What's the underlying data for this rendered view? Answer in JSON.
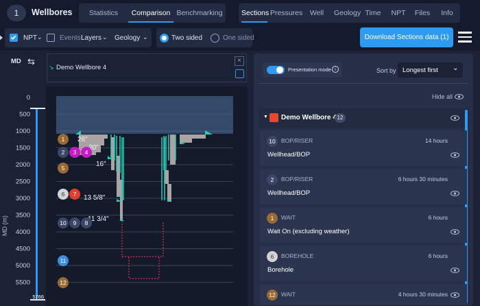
{
  "header": {
    "count": "1",
    "title": "Wellbores",
    "view_tabs": [
      {
        "label": "Statistics"
      },
      {
        "label": "Comparison"
      },
      {
        "label": "Benchmarking"
      }
    ],
    "section_tabs": [
      {
        "label": "Sections"
      },
      {
        "label": "Pressures"
      },
      {
        "label": "Well Path"
      },
      {
        "label": "Geology"
      },
      {
        "label": "Time"
      },
      {
        "label": "NPT"
      },
      {
        "label": "Files"
      },
      {
        "label": "Info"
      }
    ]
  },
  "toolbar": {
    "npt_label": "NPT",
    "events_label": "Events",
    "layers_label": "Layers",
    "geology_label": "Geology",
    "two_sided_label": "Two sided",
    "one_sided_label": "One sided",
    "download_label": "Download Sections data (1)"
  },
  "left": {
    "md_label": "MD",
    "axis_title": "MD (m)",
    "depth_ticks": [
      "0",
      "500",
      "1000",
      "1500",
      "2000",
      "2500",
      "3000",
      "3500",
      "4000",
      "4500",
      "5000",
      "5500"
    ],
    "bottom_depth": "5766",
    "wellbore_tag": "Demo Wellbore 4",
    "casings": [
      {
        "label": "26\""
      },
      {
        "label": "20\""
      },
      {
        "label": "16\""
      },
      {
        "label": "13 5/8\""
      },
      {
        "label": "11 3/4\""
      }
    ],
    "marker_labels": [
      "1",
      "2",
      "3",
      "4",
      "5",
      "6",
      "7",
      "10",
      "9",
      "8",
      "11",
      "12"
    ]
  },
  "right": {
    "presentation_label": "Presentation mode",
    "sort_label": "Sort by",
    "sort_value": "Longest first",
    "hide_all": "Hide all",
    "group": {
      "name": "Demo Wellbore 4",
      "count": "12"
    },
    "items": [
      {
        "num": "10",
        "category": "BOP/RISER",
        "duration": "14 hours",
        "title": "Wellhead/BOP"
      },
      {
        "num": "2",
        "category": "BOP/RISER",
        "duration": "6 hours 30 minutes",
        "title": "Wellhead/BOP"
      },
      {
        "num": "1",
        "category": "WAIT",
        "duration": "6 hours",
        "title": "Wait On (excluding weather)"
      },
      {
        "num": "6",
        "category": "BOREHOLE",
        "duration": "6 hours",
        "title": "Borehole"
      },
      {
        "num": "12",
        "category": "WAIT",
        "duration": "4 hours 30 minutes",
        "title": ""
      }
    ]
  },
  "colors": {
    "accent": "#2e9bf0",
    "group_marker": "#e5472f",
    "casing": "#1fd1b8",
    "rock": "#a9a3a3",
    "npt_brown": "#9a6a35",
    "npt_navy": "#3a4766",
    "npt_magenta": "#c51bc6",
    "npt_red": "#e1402f",
    "npt_grey": "#d3d3d3",
    "npt_blue": "#3d8de0"
  }
}
